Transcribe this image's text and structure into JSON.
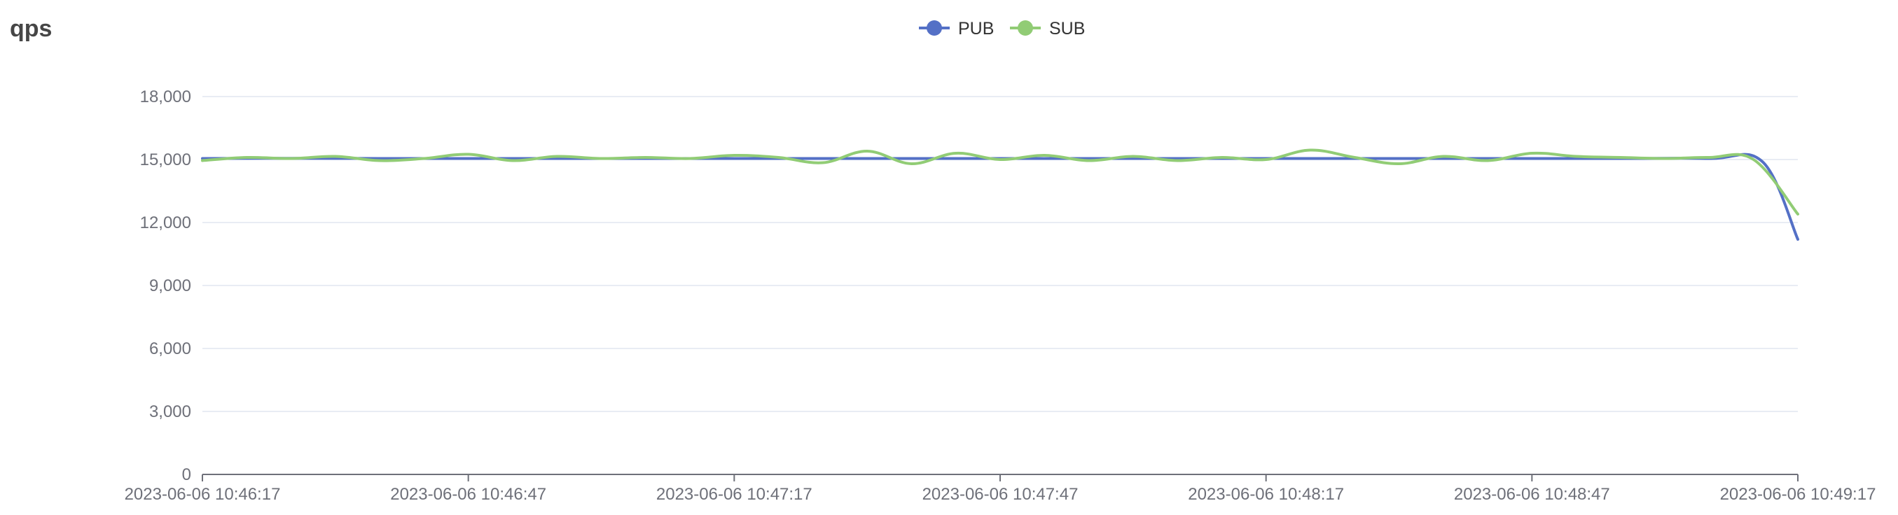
{
  "chart_data": {
    "type": "line",
    "title": "qps",
    "legend_position": "top-center",
    "grid": true,
    "ylim": [
      0,
      18000
    ],
    "yticks": [
      0,
      3000,
      6000,
      9000,
      12000,
      15000,
      18000
    ],
    "ytick_labels": [
      "0",
      "3,000",
      "6,000",
      "9,000",
      "12,000",
      "15,000",
      "18,000"
    ],
    "xticks": [
      "2023-06-06 10:46:17",
      "2023-06-06 10:46:47",
      "2023-06-06 10:47:17",
      "2023-06-06 10:47:47",
      "2023-06-06 10:48:17",
      "2023-06-06 10:48:47",
      "2023-06-06 10:49:17"
    ],
    "xlim": [
      "2023-06-06 10:46:17",
      "2023-06-06 10:49:17"
    ],
    "series": [
      {
        "name": "PUB",
        "color": "#5470c6",
        "points": [
          [
            "2023-06-06 10:46:17",
            15050
          ],
          [
            "2023-06-06 10:46:27",
            15060
          ],
          [
            "2023-06-06 10:46:37",
            15050
          ],
          [
            "2023-06-06 10:46:47",
            15050
          ],
          [
            "2023-06-06 10:46:57",
            15050
          ],
          [
            "2023-06-06 10:47:07",
            15050
          ],
          [
            "2023-06-06 10:47:17",
            15050
          ],
          [
            "2023-06-06 10:47:27",
            15050
          ],
          [
            "2023-06-06 10:47:37",
            15050
          ],
          [
            "2023-06-06 10:47:47",
            15050
          ],
          [
            "2023-06-06 10:47:57",
            15050
          ],
          [
            "2023-06-06 10:48:07",
            15050
          ],
          [
            "2023-06-06 10:48:17",
            15050
          ],
          [
            "2023-06-06 10:48:27",
            15050
          ],
          [
            "2023-06-06 10:48:37",
            15050
          ],
          [
            "2023-06-06 10:48:47",
            15050
          ],
          [
            "2023-06-06 10:48:57",
            15050
          ],
          [
            "2023-06-06 10:49:07",
            15050
          ],
          [
            "2023-06-06 10:49:13",
            14900
          ],
          [
            "2023-06-06 10:49:17",
            11200
          ]
        ]
      },
      {
        "name": "SUB",
        "color": "#91cc75",
        "points": [
          [
            "2023-06-06 10:46:17",
            14950
          ],
          [
            "2023-06-06 10:46:22",
            15100
          ],
          [
            "2023-06-06 10:46:27",
            15050
          ],
          [
            "2023-06-06 10:46:32",
            15150
          ],
          [
            "2023-06-06 10:46:37",
            14950
          ],
          [
            "2023-06-06 10:46:42",
            15050
          ],
          [
            "2023-06-06 10:46:47",
            15250
          ],
          [
            "2023-06-06 10:46:52",
            14950
          ],
          [
            "2023-06-06 10:46:57",
            15150
          ],
          [
            "2023-06-06 10:47:02",
            15050
          ],
          [
            "2023-06-06 10:47:07",
            15100
          ],
          [
            "2023-06-06 10:47:12",
            15050
          ],
          [
            "2023-06-06 10:47:17",
            15200
          ],
          [
            "2023-06-06 10:47:22",
            15100
          ],
          [
            "2023-06-06 10:47:27",
            14850
          ],
          [
            "2023-06-06 10:47:32",
            15400
          ],
          [
            "2023-06-06 10:47:37",
            14800
          ],
          [
            "2023-06-06 10:47:42",
            15300
          ],
          [
            "2023-06-06 10:47:47",
            15000
          ],
          [
            "2023-06-06 10:47:52",
            15200
          ],
          [
            "2023-06-06 10:47:57",
            14950
          ],
          [
            "2023-06-06 10:48:02",
            15150
          ],
          [
            "2023-06-06 10:48:07",
            14950
          ],
          [
            "2023-06-06 10:48:12",
            15100
          ],
          [
            "2023-06-06 10:48:17",
            15000
          ],
          [
            "2023-06-06 10:48:22",
            15450
          ],
          [
            "2023-06-06 10:48:27",
            15100
          ],
          [
            "2023-06-06 10:48:32",
            14800
          ],
          [
            "2023-06-06 10:48:37",
            15150
          ],
          [
            "2023-06-06 10:48:42",
            14950
          ],
          [
            "2023-06-06 10:48:47",
            15300
          ],
          [
            "2023-06-06 10:48:52",
            15150
          ],
          [
            "2023-06-06 10:48:57",
            15100
          ],
          [
            "2023-06-06 10:49:02",
            15050
          ],
          [
            "2023-06-06 10:49:07",
            15100
          ],
          [
            "2023-06-06 10:49:12",
            15000
          ],
          [
            "2023-06-06 10:49:17",
            12400
          ]
        ]
      }
    ]
  }
}
